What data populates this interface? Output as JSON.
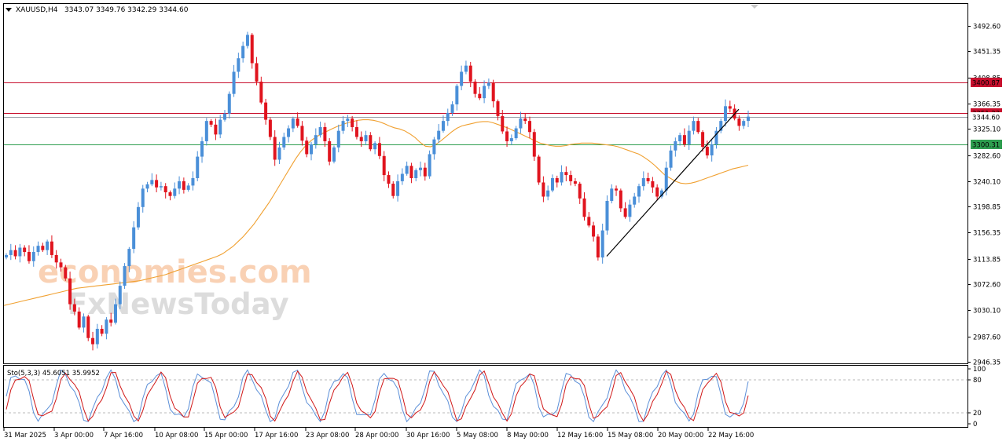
{
  "header": {
    "symbol": "XAUUSD,H4",
    "ohlc": "3343.07 3349.76 3342.29 3344.60"
  },
  "indicator": {
    "label": "Sto(5,3,3) 45.6051 35.9952",
    "levels": [
      "100",
      "80",
      "20",
      "0"
    ]
  },
  "watermark": {
    "line1": "economies.com",
    "line2": "FxNewsToday"
  },
  "colors": {
    "bull": "#4a8fd8",
    "bear": "#e0141e",
    "ma": "#f0a030",
    "resistance": "#c8102e",
    "support": "#2e9d4f",
    "stoch_main": "#5b8fd8",
    "stoch_signal": "#d01818",
    "trendline": "#000000"
  },
  "chart_data": {
    "type": "candlestick",
    "symbol": "XAUUSD",
    "timeframe": "H4",
    "ylim": [
      2935,
      3520
    ],
    "y_ticks": [
      "3492.60",
      "3451.35",
      "3408.85",
      "3366.35",
      "3325.10",
      "3282.60",
      "3240.10",
      "3198.85",
      "3156.35",
      "3113.85",
      "3072.60",
      "3030.10",
      "2987.60",
      "2946.35"
    ],
    "x_ticks": [
      "31 Mar 2025",
      "3 Apr 00:00",
      "7 Apr 16:00",
      "10 Apr 08:00",
      "15 Apr 00:00",
      "17 Apr 16:00",
      "23 Apr 08:00",
      "28 Apr 00:00",
      "30 Apr 16:00",
      "5 May 08:00",
      "8 May 00:00",
      "12 May 16:00",
      "15 May 08:00",
      "20 May 00:00",
      "22 May 16:00"
    ],
    "horizontal_levels": [
      {
        "value": 3400.87,
        "label": "3400.87",
        "kind": "resistance"
      },
      {
        "value": 3351.23,
        "label": "3351.23",
        "kind": "resistance"
      },
      {
        "value": 3344.6,
        "label": "3344.60",
        "kind": "current"
      },
      {
        "value": 3300.31,
        "label": "3300.31",
        "kind": "support"
      }
    ],
    "trendline": {
      "from": [
        3118,
        0.81
      ],
      "to": [
        3352,
        0.98
      ]
    },
    "closes": [
      3120,
      3128,
      3118,
      3132,
      3125,
      3110,
      3125,
      3135,
      3128,
      3142,
      3120,
      3108,
      3100,
      3082,
      3040,
      3028,
      3002,
      3020,
      2985,
      2975,
      3000,
      2992,
      3015,
      3010,
      3040,
      3070,
      3102,
      3130,
      3165,
      3198,
      3228,
      3235,
      3242,
      3230,
      3232,
      3222,
      3216,
      3228,
      3240,
      3226,
      3233,
      3245,
      3280,
      3305,
      3338,
      3332,
      3316,
      3340,
      3350,
      3382,
      3418,
      3440,
      3460,
      3478,
      3432,
      3402,
      3368,
      3340,
      3312,
      3275,
      3295,
      3312,
      3326,
      3342,
      3330,
      3306,
      3284,
      3300,
      3315,
      3328,
      3305,
      3272,
      3295,
      3322,
      3338,
      3342,
      3328,
      3312,
      3305,
      3315,
      3292,
      3302,
      3281,
      3250,
      3236,
      3216,
      3240,
      3252,
      3265,
      3245,
      3258,
      3262,
      3248,
      3284,
      3308,
      3322,
      3338,
      3351,
      3365,
      3395,
      3418,
      3428,
      3402,
      3382,
      3375,
      3395,
      3400,
      3370,
      3346,
      3321,
      3305,
      3310,
      3326,
      3342,
      3338,
      3320,
      3280,
      3238,
      3215,
      3225,
      3245,
      3238,
      3255,
      3250,
      3240,
      3236,
      3212,
      3182,
      3168,
      3150,
      3116,
      3160,
      3208,
      3228,
      3225,
      3196,
      3182,
      3202,
      3215,
      3232,
      3245,
      3240,
      3230,
      3215,
      3225,
      3262,
      3290,
      3305,
      3315,
      3300,
      3322,
      3338,
      3320,
      3296,
      3282,
      3300,
      3322,
      3338,
      3362,
      3358,
      3342,
      3330,
      3338,
      3345
    ],
    "ma": [
      3038,
      3040,
      3042,
      3044,
      3046,
      3048,
      3050,
      3052,
      3054,
      3056,
      3058,
      3060,
      3062,
      3064,
      3066,
      3067,
      3068,
      3069,
      3070,
      3071,
      3072,
      3073,
      3074,
      3075,
      3076,
      3077,
      3078,
      3080,
      3082,
      3084,
      3086,
      3088,
      3091,
      3094,
      3097,
      3100,
      3103,
      3106,
      3109,
      3112,
      3115,
      3118,
      3122,
      3128,
      3134,
      3142,
      3150,
      3160,
      3170,
      3182,
      3194,
      3206,
      3220,
      3234,
      3248,
      3262,
      3276,
      3288,
      3298,
      3306,
      3312,
      3317,
      3321,
      3325,
      3329,
      3332,
      3335,
      3337,
      3339,
      3340,
      3340,
      3339,
      3337,
      3334,
      3330,
      3327,
      3325,
      3322,
      3317,
      3311,
      3303,
      3297,
      3296,
      3300,
      3306,
      3313,
      3320,
      3326,
      3330,
      3332,
      3334,
      3336,
      3337,
      3337,
      3335,
      3332,
      3329,
      3326,
      3322,
      3318,
      3314,
      3310,
      3306,
      3302,
      3300,
      3298,
      3297,
      3297,
      3298,
      3300,
      3301,
      3302,
      3302,
      3302,
      3301,
      3300,
      3299,
      3298,
      3296,
      3293,
      3290,
      3287,
      3284,
      3279,
      3273,
      3266,
      3258,
      3250,
      3245,
      3240,
      3237,
      3236,
      3237,
      3239,
      3242,
      3245,
      3248,
      3251,
      3254,
      3257,
      3260,
      3262,
      3264,
      3266
    ]
  }
}
